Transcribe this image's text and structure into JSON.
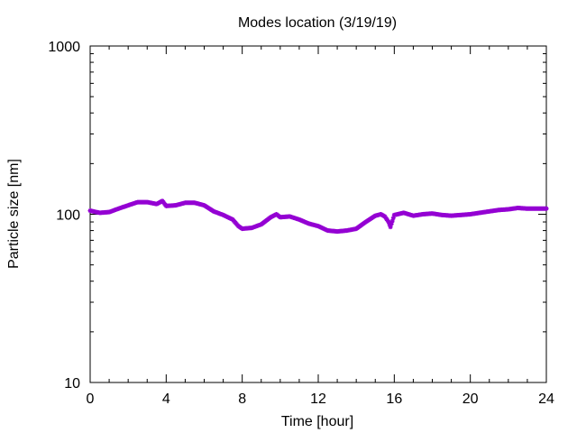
{
  "chart_data": {
    "type": "scatter",
    "title": "Modes location (3/19/19)",
    "xlabel": "Time [hour]",
    "ylabel": "Particle size [nm]",
    "xlim": [
      0,
      24
    ],
    "ylim": [
      10,
      1000
    ],
    "yscale": "log",
    "xticks": [
      "0",
      "4",
      "8",
      "12",
      "16",
      "20",
      "24"
    ],
    "yticks": [
      "10",
      "100",
      "1000"
    ],
    "grid": false,
    "legend": "none",
    "marker_color": "#9400D3",
    "series": [
      {
        "x": [
          0.0,
          0.5,
          1.0,
          1.5,
          2.0,
          2.5,
          3.0,
          3.5,
          3.8,
          4.0,
          4.5,
          5.0,
          5.5,
          6.0,
          6.5,
          7.0,
          7.5,
          7.8,
          8.0,
          8.5,
          9.0,
          9.5,
          9.8,
          10.0,
          10.5,
          11.0,
          11.5,
          12.0,
          12.5,
          13.0,
          13.5,
          14.0,
          14.5,
          15.0,
          15.3,
          15.5,
          15.7,
          15.8,
          16.0,
          16.5,
          17.0,
          17.5,
          18.0,
          18.5,
          19.0,
          19.5,
          20.0,
          20.5,
          21.0,
          21.5,
          22.0,
          22.5,
          23.0,
          23.5,
          24.0
        ],
        "y": [
          105,
          102,
          103,
          108,
          113,
          118,
          118,
          115,
          120,
          112,
          113,
          117,
          117,
          113,
          104,
          99,
          93,
          85,
          82,
          83,
          87,
          96,
          100,
          96,
          97,
          93,
          88,
          85,
          80,
          79,
          80,
          82,
          90,
          98,
          100,
          97,
          90,
          84,
          99,
          102,
          98,
          100,
          101,
          99,
          98,
          99,
          100,
          102,
          104,
          106,
          107,
          109,
          108,
          108,
          108
        ]
      }
    ]
  }
}
